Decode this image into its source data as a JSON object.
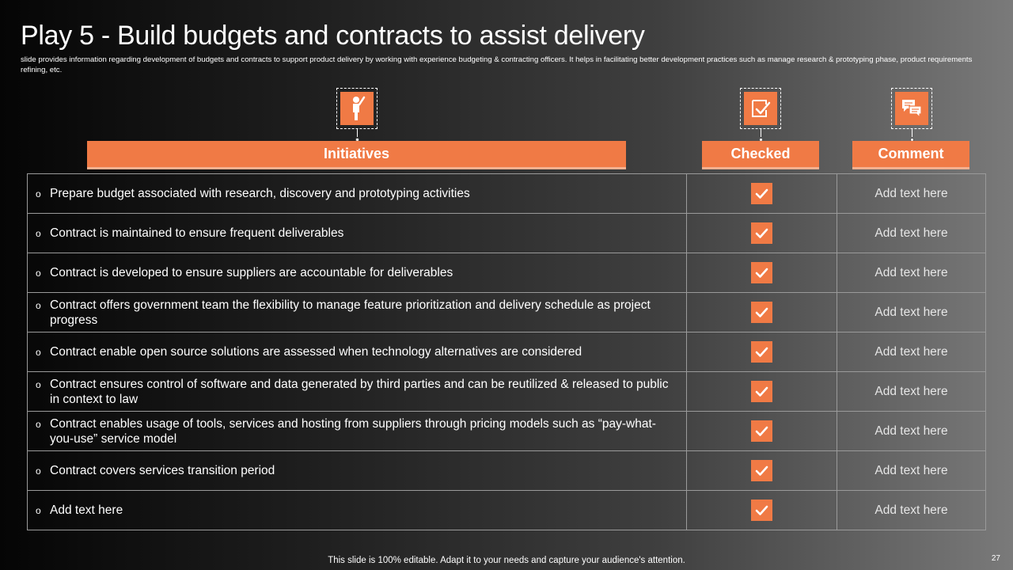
{
  "slide": {
    "title": "Play 5 - Build budgets and contracts to assist delivery",
    "subtitle": "slide provides information regarding development of budgets and contracts to support product delivery by working with experience budgeting & contracting officers. It helps in  facilitating better development practices such as manage research & prototyping phase, product requirements refining, etc.",
    "footer": "This slide is 100% editable. Adapt it to your needs and capture your audience's attention.",
    "page_number": "27"
  },
  "headers": {
    "initiatives": "Initiatives",
    "checked": "Checked",
    "comment": "Comment"
  },
  "icons": {
    "initiatives": "person-raising-hand-icon",
    "checked": "checkbox-tick-icon",
    "comment": "chat-bubbles-icon"
  },
  "colors": {
    "accent": "#f07a45",
    "accent_light": "#f7b08f"
  },
  "rows": [
    {
      "bullet": "o",
      "initiative": "Prepare budget associated with research, discovery and prototyping activities",
      "checked": true,
      "comment": "Add text here"
    },
    {
      "bullet": "o",
      "initiative": "Contract is maintained to ensure frequent deliverables",
      "checked": true,
      "comment": "Add text here"
    },
    {
      "bullet": "o",
      "initiative": "Contract is developed to ensure suppliers are accountable for deliverables",
      "checked": true,
      "comment": "Add text here"
    },
    {
      "bullet": "o",
      "initiative": "Contract offers government team the flexibility to manage feature prioritization and delivery schedule as project progress",
      "checked": true,
      "comment": "Add text here"
    },
    {
      "bullet": "o",
      "initiative": "Contract enable open source solutions are assessed when technology alternatives are considered",
      "checked": true,
      "comment": "Add text here"
    },
    {
      "bullet": "o",
      "initiative": "Contract ensures control of software and data generated by third parties and can be reutilized & released to public in context to law",
      "checked": true,
      "comment": "Add text here"
    },
    {
      "bullet": "o",
      "initiative": "Contract enables usage of tools, services and hosting from suppliers through pricing models such as “pay-what-you-use” service model",
      "checked": true,
      "comment": "Add text here"
    },
    {
      "bullet": "o",
      "initiative": "Contract covers services transition period",
      "checked": true,
      "comment": "Add text here"
    },
    {
      "bullet": "o",
      "initiative": "Add text here",
      "checked": true,
      "comment": "Add text here"
    }
  ]
}
